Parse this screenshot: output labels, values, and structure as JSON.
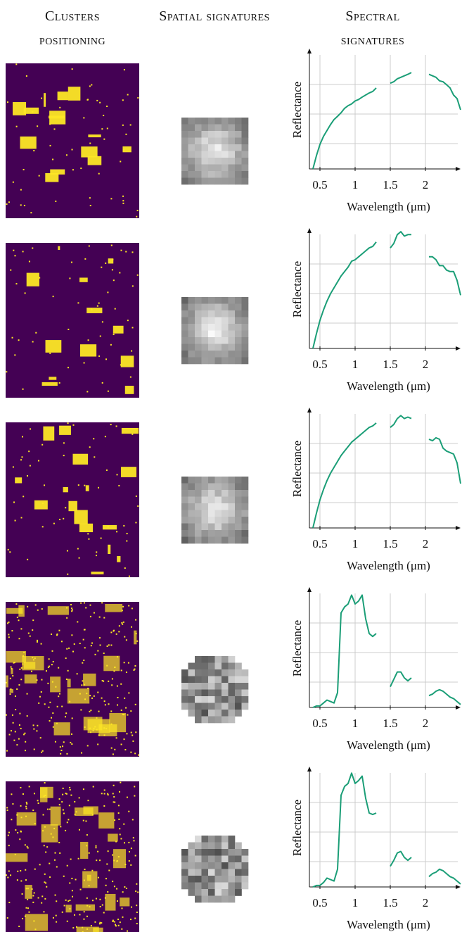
{
  "column_headers": [
    "Clusters positioning",
    "Spatial signatures",
    "Spectral signatures"
  ],
  "chart_data": [
    {
      "type": "line",
      "xlabel": "Wavelength (μm)",
      "ylabel": "Reflectance",
      "xlim": [
        0.35,
        2.5
      ],
      "xticks": [
        0.5,
        1,
        1.5,
        2
      ],
      "ylim": [
        0,
        4
      ],
      "grid": true,
      "x": [
        0.4,
        0.45,
        0.5,
        0.55,
        0.6,
        0.65,
        0.7,
        0.75,
        0.8,
        0.85,
        0.9,
        0.95,
        1.0,
        1.05,
        1.1,
        1.15,
        1.2,
        1.25,
        1.3,
        1.35,
        1.5,
        1.55,
        1.6,
        1.65,
        1.7,
        1.75,
        1.8,
        1.9,
        2.05,
        2.1,
        2.15,
        2.2,
        2.25,
        2.3,
        2.35,
        2.4,
        2.45,
        2.5
      ],
      "series": [
        {
          "color": "#1b9e77",
          "values": [
            0,
            0.45,
            0.83,
            1.1,
            1.3,
            1.5,
            1.67,
            1.78,
            1.9,
            2.05,
            2.14,
            2.2,
            2.3,
            2.35,
            2.43,
            2.5,
            2.57,
            2.62,
            2.74,
            null,
            2.9,
            2.95,
            3.05,
            3.1,
            3.15,
            3.2,
            3.26,
            null,
            3.2,
            3.15,
            3.1,
            2.98,
            2.95,
            2.85,
            2.74,
            2.5,
            2.38,
            2.0
          ]
        }
      ]
    },
    {
      "type": "line",
      "xlabel": "Wavelength (μm)",
      "ylabel": "Reflectance",
      "xlim": [
        0.35,
        2.5
      ],
      "xticks": [
        0.5,
        1,
        1.5,
        2
      ],
      "ylim": [
        0,
        4
      ],
      "grid": true,
      "x": [
        0.4,
        0.45,
        0.5,
        0.55,
        0.6,
        0.65,
        0.7,
        0.75,
        0.8,
        0.85,
        0.9,
        0.95,
        1.0,
        1.05,
        1.1,
        1.15,
        1.2,
        1.25,
        1.3,
        1.35,
        1.5,
        1.55,
        1.6,
        1.65,
        1.7,
        1.75,
        1.8,
        1.9,
        2.05,
        2.1,
        2.15,
        2.2,
        2.25,
        2.3,
        2.35,
        2.4,
        2.45,
        2.5
      ],
      "series": [
        {
          "color": "#1b9e77",
          "values": [
            0,
            0.5,
            0.95,
            1.3,
            1.6,
            1.85,
            2.05,
            2.25,
            2.45,
            2.6,
            2.75,
            2.95,
            3.0,
            3.1,
            3.2,
            3.3,
            3.4,
            3.45,
            3.6,
            null,
            3.4,
            3.55,
            3.85,
            3.95,
            3.8,
            3.85,
            3.85,
            null,
            3.1,
            3.1,
            3.0,
            2.8,
            2.8,
            2.65,
            2.6,
            2.6,
            2.3,
            1.8
          ]
        }
      ]
    },
    {
      "type": "line",
      "xlabel": "Wavelength (μm)",
      "ylabel": "Reflectance",
      "xlim": [
        0.35,
        2.5
      ],
      "xticks": [
        0.5,
        1,
        1.5,
        2
      ],
      "ylim": [
        0,
        4
      ],
      "grid": true,
      "x": [
        0.4,
        0.45,
        0.5,
        0.55,
        0.6,
        0.65,
        0.7,
        0.75,
        0.8,
        0.85,
        0.9,
        0.95,
        1.0,
        1.05,
        1.1,
        1.15,
        1.2,
        1.25,
        1.3,
        1.35,
        1.5,
        1.55,
        1.6,
        1.65,
        1.7,
        1.75,
        1.8,
        1.9,
        2.05,
        2.1,
        2.15,
        2.2,
        2.25,
        2.3,
        2.35,
        2.4,
        2.45,
        2.5
      ],
      "series": [
        {
          "color": "#1b9e77",
          "values": [
            0,
            0.5,
            0.95,
            1.3,
            1.6,
            1.85,
            2.05,
            2.25,
            2.45,
            2.6,
            2.75,
            2.9,
            3.0,
            3.1,
            3.2,
            3.3,
            3.4,
            3.45,
            3.55,
            null,
            3.4,
            3.5,
            3.7,
            3.8,
            3.7,
            3.75,
            3.7,
            null,
            3.0,
            2.95,
            3.05,
            3.0,
            2.7,
            2.6,
            2.55,
            2.5,
            2.2,
            1.5
          ]
        }
      ]
    },
    {
      "type": "line",
      "xlabel": "Wavelength (μm)",
      "ylabel": "Reflectance",
      "xlim": [
        0.35,
        2.5
      ],
      "xticks": [
        0.5,
        1,
        1.5,
        2
      ],
      "ylim": [
        0,
        4
      ],
      "grid": true,
      "x": [
        0.4,
        0.45,
        0.5,
        0.55,
        0.6,
        0.65,
        0.7,
        0.75,
        0.8,
        0.85,
        0.9,
        0.95,
        1.0,
        1.05,
        1.1,
        1.15,
        1.2,
        1.25,
        1.3,
        1.35,
        1.5,
        1.55,
        1.6,
        1.65,
        1.7,
        1.75,
        1.8,
        1.9,
        2.05,
        2.1,
        2.15,
        2.2,
        2.25,
        2.3,
        2.35,
        2.4,
        2.45,
        2.5
      ],
      "series": [
        {
          "color": "#1b9e77",
          "values": [
            0,
            0.05,
            0.05,
            0.15,
            0.25,
            0.2,
            0.15,
            0.5,
            3.2,
            3.4,
            3.5,
            3.8,
            3.5,
            3.6,
            3.8,
            3.0,
            2.5,
            2.4,
            2.5,
            null,
            0.7,
            0.95,
            1.2,
            1.2,
            1.0,
            0.9,
            1.0,
            null,
            0.4,
            0.45,
            0.55,
            0.6,
            0.55,
            0.45,
            0.35,
            0.3,
            0.2,
            0.1
          ]
        }
      ]
    },
    {
      "type": "line",
      "xlabel": "Wavelength (μm)",
      "ylabel": "Reflectance",
      "xlim": [
        0.35,
        2.5
      ],
      "xticks": [
        0.5,
        1,
        1.5,
        2
      ],
      "ylim": [
        0,
        4
      ],
      "grid": true,
      "x": [
        0.4,
        0.45,
        0.5,
        0.55,
        0.6,
        0.65,
        0.7,
        0.75,
        0.8,
        0.85,
        0.9,
        0.95,
        1.0,
        1.05,
        1.1,
        1.15,
        1.2,
        1.25,
        1.3,
        1.35,
        1.5,
        1.55,
        1.6,
        1.65,
        1.7,
        1.75,
        1.8,
        1.9,
        2.05,
        2.1,
        2.15,
        2.2,
        2.25,
        2.3,
        2.35,
        2.4,
        2.45,
        2.5
      ],
      "series": [
        {
          "color": "#1b9e77",
          "values": [
            0,
            0.05,
            0.05,
            0.15,
            0.3,
            0.25,
            0.2,
            0.6,
            3.1,
            3.4,
            3.5,
            3.85,
            3.5,
            3.6,
            3.75,
            3.0,
            2.5,
            2.45,
            2.5,
            null,
            0.7,
            0.9,
            1.15,
            1.2,
            1.0,
            0.9,
            1.0,
            null,
            0.35,
            0.45,
            0.5,
            0.6,
            0.55,
            0.45,
            0.35,
            0.3,
            0.2,
            0.1
          ]
        }
      ]
    }
  ]
}
